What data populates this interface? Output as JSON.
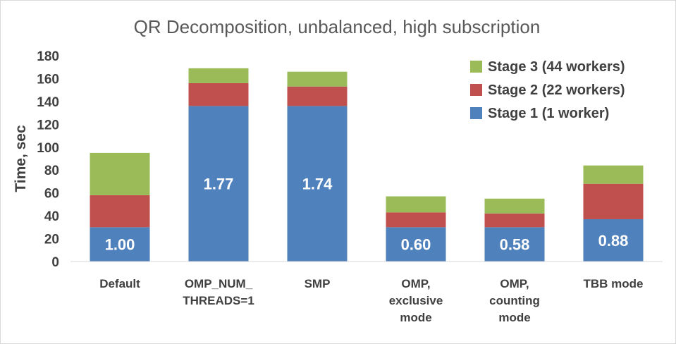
{
  "chart_data": {
    "type": "bar",
    "stacked": true,
    "title": "QR Decomposition, unbalanced, high subscription",
    "xlabel": "",
    "ylabel": "Time, sec",
    "ylim": [
      0,
      180
    ],
    "yticks": [
      0,
      20,
      40,
      60,
      80,
      100,
      120,
      140,
      160,
      180
    ],
    "grid": false,
    "legend_position": "top-right",
    "categories": [
      [
        "Default"
      ],
      [
        "OMP_NUM_",
        "THREADS=1"
      ],
      [
        "SMP"
      ],
      [
        "OMP,",
        "exclusive",
        "mode"
      ],
      [
        "OMP,",
        "counting",
        "mode"
      ],
      [
        "TBB mode"
      ]
    ],
    "series": [
      {
        "name": "Stage 1 (1 worker)",
        "color": "#4f81bd",
        "values": [
          30,
          136,
          136,
          30,
          30,
          37
        ]
      },
      {
        "name": "Stage 2 (22 workers)",
        "color": "#c0504d",
        "values": [
          28,
          20,
          17,
          13,
          12,
          31
        ]
      },
      {
        "name": "Stage 3 (44 workers)",
        "color": "#9bbb59",
        "values": [
          37,
          13,
          13,
          14,
          13,
          16
        ]
      }
    ],
    "data_labels": [
      "1.00",
      "1.77",
      "1.74",
      "0.60",
      "0.58",
      "0.88"
    ]
  }
}
